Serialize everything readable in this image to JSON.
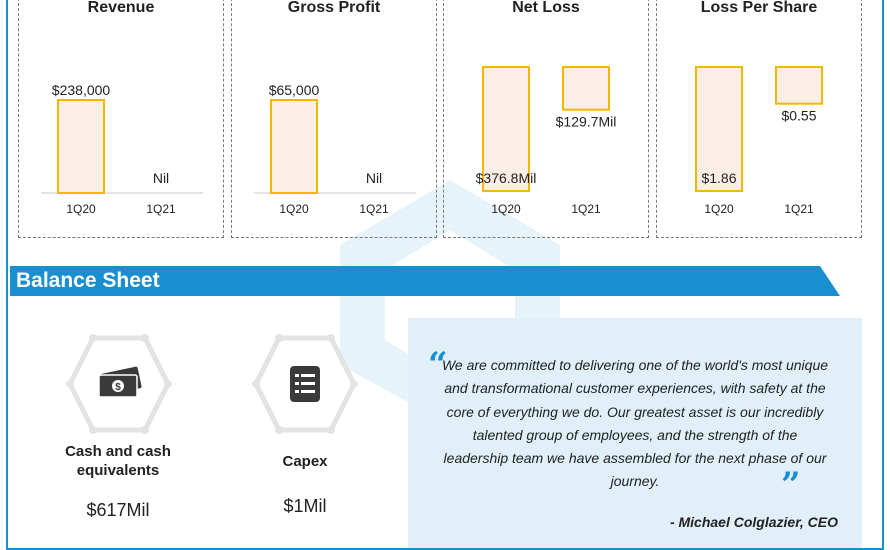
{
  "colors": {
    "accent": "#1a8fd0",
    "bar_fill": "#fbeee6",
    "bar_stroke": "#f5b700",
    "quote_bg": "#e1eff8"
  },
  "chart_data": [
    {
      "type": "bar",
      "title": "Revenue",
      "categories": [
        "1Q20",
        "1Q21"
      ],
      "values": [
        238000,
        0
      ],
      "data_labels": [
        "$238,000",
        "Nil"
      ]
    },
    {
      "type": "bar",
      "title": "Gross Profit",
      "categories": [
        "1Q20",
        "1Q21"
      ],
      "values": [
        65000,
        0
      ],
      "data_labels": [
        "$65,000",
        "Nil"
      ]
    },
    {
      "type": "bar",
      "title": "Net Loss",
      "categories": [
        "1Q20",
        "1Q21"
      ],
      "values": [
        -376.8,
        -129.7
      ],
      "data_labels": [
        "$376.8Mil",
        "$129.7Mil"
      ]
    },
    {
      "type": "bar",
      "title": "Loss Per Share",
      "categories": [
        "1Q20",
        "1Q21"
      ],
      "values": [
        -1.86,
        -0.55
      ],
      "data_labels": [
        "$1.86",
        "$0.55"
      ]
    }
  ],
  "balance_sheet": {
    "title": "Balance Sheet",
    "items": [
      {
        "label": "Cash and cash equivalents",
        "value": "$617Mil",
        "icon": "cash-icon"
      },
      {
        "label": "Capex",
        "value": "$1Mil",
        "icon": "document-icon"
      }
    ]
  },
  "quote": {
    "open_mark": "“",
    "close_mark": "”",
    "text": "We are committed to delivering one of the world's most unique and transformational customer experiences, with safety at the core of everything we do. Our greatest asset is our incredibly talented group of employees, and the strength of the leadership team we have assembled for the next phase of our journey.",
    "author": "- Michael Colglazier, CEO"
  }
}
